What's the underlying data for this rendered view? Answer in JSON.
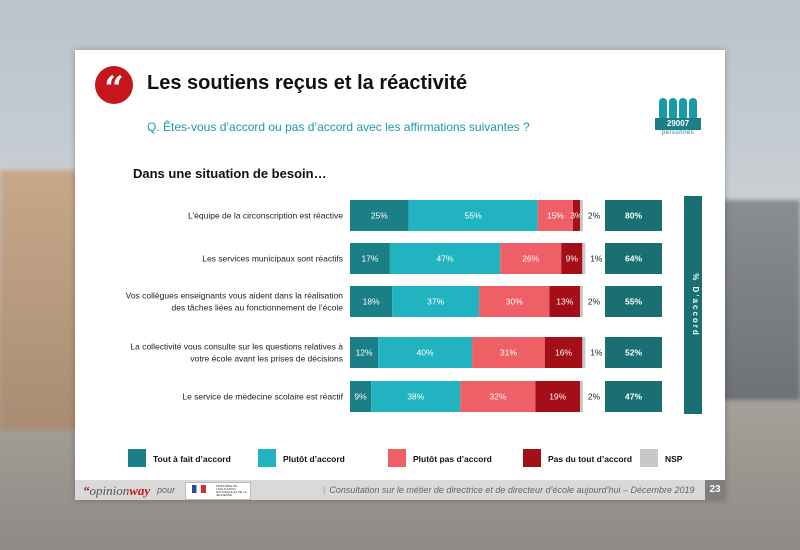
{
  "header": {
    "title": "Les soutiens reçus et la réactivité",
    "question": "Q. Êtes-vous d’accord ou pas d’accord avec les affirmations suivantes ?",
    "sample_count": "29007",
    "sample_label": "personnes",
    "quote_glyph": "“"
  },
  "subtitle": "Dans une situation de besoin…",
  "colors": {
    "tout_a_fait": "#1a7f86",
    "plutot": "#21b4c0",
    "plutot_pas": "#ef6066",
    "pas_du_tout": "#a40f17",
    "nsp": "#c8c8c8",
    "accord_box": "#1a6f73"
  },
  "chart_data": {
    "type": "bar",
    "orientation": "horizontal-stacked-100",
    "categories": [
      "L’équipe de la circonscription est réactive",
      "Les services municipaux sont réactifs",
      "Vos collègues enseignants vous aident dans la réalisation des tâches liées au fonctionnement de l’école",
      "La collectivité vous consulte sur les questions relatives à votre école avant les prises de décisions",
      "Le service de médecine scolaire est réactif"
    ],
    "category_lines": [
      [
        "L’équipe de la circonscription est réactive"
      ],
      [
        "Les services municipaux sont réactifs"
      ],
      [
        "Vos collègues enseignants vous aident dans la réalisation",
        "des tâches liées au fonctionnement de l’école"
      ],
      [
        "La collectivité vous consulte sur les questions relatives à",
        "votre école avant les prises de décisions"
      ],
      [
        "Le service de médecine scolaire est réactif"
      ]
    ],
    "series": [
      {
        "name": "Tout à fait d’accord",
        "values": [
          25,
          17,
          18,
          12,
          9
        ]
      },
      {
        "name": "Plutôt d’accord",
        "values": [
          55,
          47,
          37,
          40,
          38
        ]
      },
      {
        "name": "Plutôt pas d’accord",
        "values": [
          15,
          26,
          30,
          31,
          32
        ]
      },
      {
        "name": "Pas du tout d’accord",
        "values": [
          3,
          9,
          13,
          16,
          19
        ]
      },
      {
        "name": "NSP",
        "values": [
          2,
          1,
          2,
          1,
          2
        ]
      }
    ],
    "labels": [
      [
        "25%",
        "55%",
        "15%",
        "3%",
        "2%"
      ],
      [
        "17%",
        "47%",
        "26%",
        "9%",
        "1%"
      ],
      [
        "18%",
        "37%",
        "30%",
        "13%",
        "2%"
      ],
      [
        "12%",
        "40%",
        "31%",
        "16%",
        "1%"
      ],
      [
        "9%",
        "38%",
        "32%",
        "19%",
        "2%"
      ]
    ],
    "accord_totals": [
      80,
      64,
      55,
      52,
      47
    ],
    "accord_labels": [
      "80%",
      "64%",
      "55%",
      "52%",
      "47%"
    ],
    "accord_axis_label": "% D’accord",
    "xlim": [
      0,
      100
    ],
    "legend_position": "bottom"
  },
  "footer": {
    "brand_quote": "“",
    "brand_main": "opinion",
    "brand_tail": "way",
    "pour": "pour",
    "ministry_text": "MINISTÈRE DE L’ÉDUCATION NATIONALE ET DE LA JEUNESSE",
    "separator": "|",
    "consultation": "Consultation sur le métier de directrice et de directeur d’école aujourd’hui – Décembre 2019",
    "page_number": "23"
  }
}
